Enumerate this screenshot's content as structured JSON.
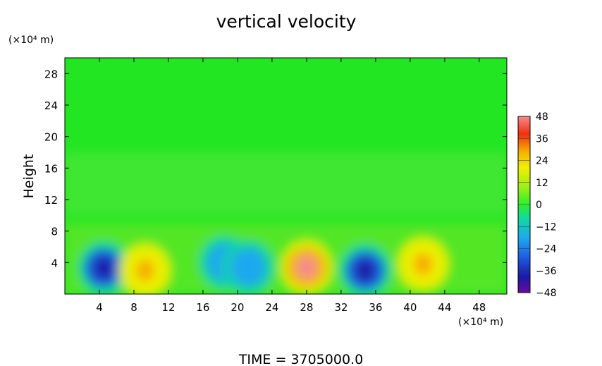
{
  "chart_data": {
    "type": "heatmap",
    "title": "vertical velocity",
    "ylabel": "Height",
    "x_unit": "(×10⁴ m)",
    "y_unit": "(×10⁴ m)",
    "footer": "TIME  =  3705000.0",
    "xlim": [
      0,
      51.2
    ],
    "ylim": [
      0,
      30
    ],
    "x_ticks": [
      "4",
      "8",
      "12",
      "16",
      "20",
      "24",
      "28",
      "32",
      "36",
      "40",
      "44",
      "48"
    ],
    "y_ticks": [
      "4",
      "8",
      "12",
      "16",
      "20",
      "24",
      "28"
    ],
    "colorbar": {
      "min": -48,
      "max": 48,
      "ticks": [
        "48",
        "36",
        "24",
        "12",
        "0",
        "−12",
        "−24",
        "−36",
        "−48"
      ]
    },
    "features": [
      {
        "x": 4.5,
        "y": 3.3,
        "value": -36
      },
      {
        "x": 9.3,
        "y": 3.0,
        "value": 30
      },
      {
        "x": 18.5,
        "y": 4.0,
        "value": -20
      },
      {
        "x": 21.3,
        "y": 3.4,
        "value": -20
      },
      {
        "x": 28.0,
        "y": 3.4,
        "value": 44
      },
      {
        "x": 34.8,
        "y": 3.0,
        "value": -40
      },
      {
        "x": 41.5,
        "y": 3.8,
        "value": 32
      }
    ]
  }
}
